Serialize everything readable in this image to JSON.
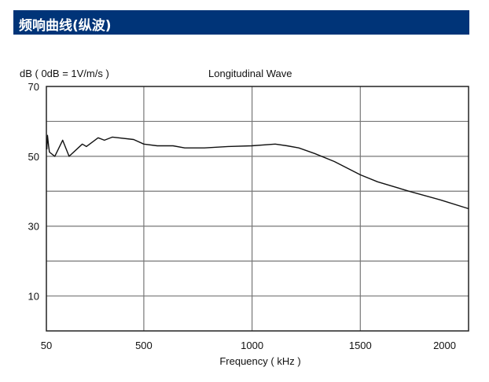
{
  "header": {
    "title": "频响曲线(纵波)"
  },
  "chart_data": {
    "type": "line",
    "title": "Longitudinal Wave",
    "ylabel": "dB ( 0dB = 1V/m/s )",
    "xlabel": "Frequency ( kHz )",
    "xlim": [
      50,
      2000
    ],
    "ylim": [
      0,
      70
    ],
    "x_ticks": [
      50,
      500,
      1000,
      1500,
      2000
    ],
    "x_tick_labels": [
      "50",
      "500",
      "1000",
      "1500",
      "2000"
    ],
    "y_ticks": [
      10,
      30,
      50,
      70
    ],
    "y_tick_labels": [
      "10",
      "30",
      "50",
      "70"
    ],
    "y_grid": [
      10,
      20,
      30,
      40,
      50,
      60
    ],
    "x_grid": [
      500,
      1000,
      1500
    ],
    "grid": true,
    "line_color": "#111111",
    "series": [
      {
        "name": "Longitudinal Wave",
        "x": [
          52,
          55,
          60,
          64,
          89,
          125,
          155,
          216,
          235,
          289,
          318,
          355,
          453,
          500,
          562,
          635,
          689,
          780,
          889,
          998,
          1107,
          1162,
          1216,
          1289,
          1380,
          1500,
          1580,
          1725,
          1871,
          2000
        ],
        "y": [
          52,
          56,
          53,
          51.2,
          50,
          54.6,
          50,
          53.5,
          52.8,
          55.3,
          54.6,
          55.5,
          54.8,
          53.5,
          53,
          53,
          52.4,
          52.4,
          52.8,
          53,
          53.5,
          53,
          52.4,
          50.8,
          48.5,
          44.7,
          42.7,
          40,
          37.5,
          35
        ]
      }
    ]
  }
}
